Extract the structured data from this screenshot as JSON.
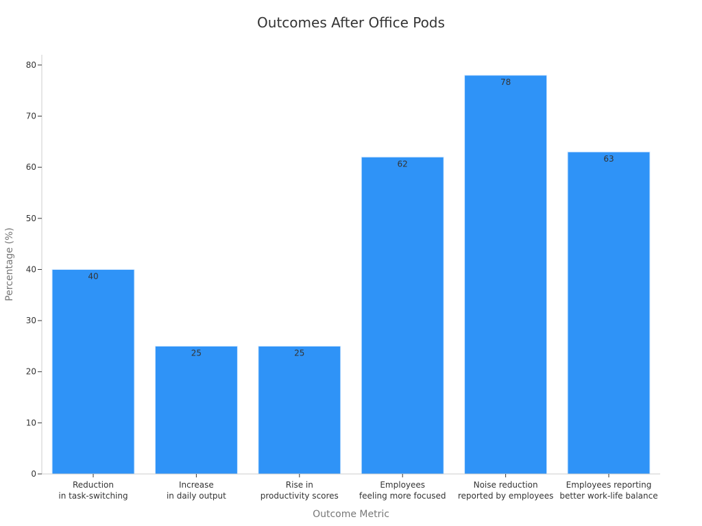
{
  "chart_data": {
    "type": "bar",
    "title": "Outcomes After Office Pods",
    "xlabel": "Outcome Metric",
    "ylabel": "Percentage (%)",
    "ylim": [
      0,
      82
    ],
    "yticks": [
      0,
      10,
      20,
      30,
      40,
      50,
      60,
      70,
      80
    ],
    "categories": [
      [
        "Reduction",
        "in task-switching"
      ],
      [
        "Increase",
        "in daily output"
      ],
      [
        "Rise in",
        "productivity scores"
      ],
      [
        "Employees",
        "feeling more focused"
      ],
      [
        "Noise reduction",
        "reported by employees"
      ],
      [
        "Employees reporting",
        "better work-life balance"
      ]
    ],
    "values": [
      40,
      25,
      25,
      62,
      78,
      63
    ],
    "bar_color": "#2f93f7",
    "grid": false,
    "legend": "none"
  }
}
